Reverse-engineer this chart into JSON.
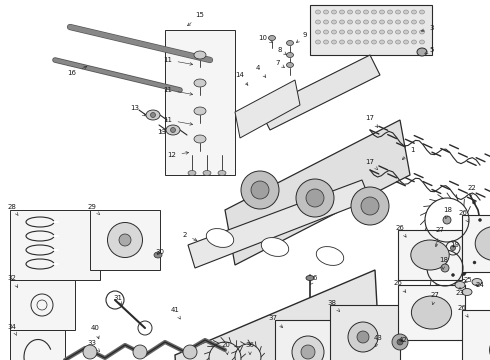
{
  "bg_color": "#ffffff",
  "lc": "#2a2a2a",
  "fig_width": 4.9,
  "fig_height": 3.6,
  "dpi": 100,
  "label_fs": 5.0,
  "label_color": "#1a1a1a"
}
